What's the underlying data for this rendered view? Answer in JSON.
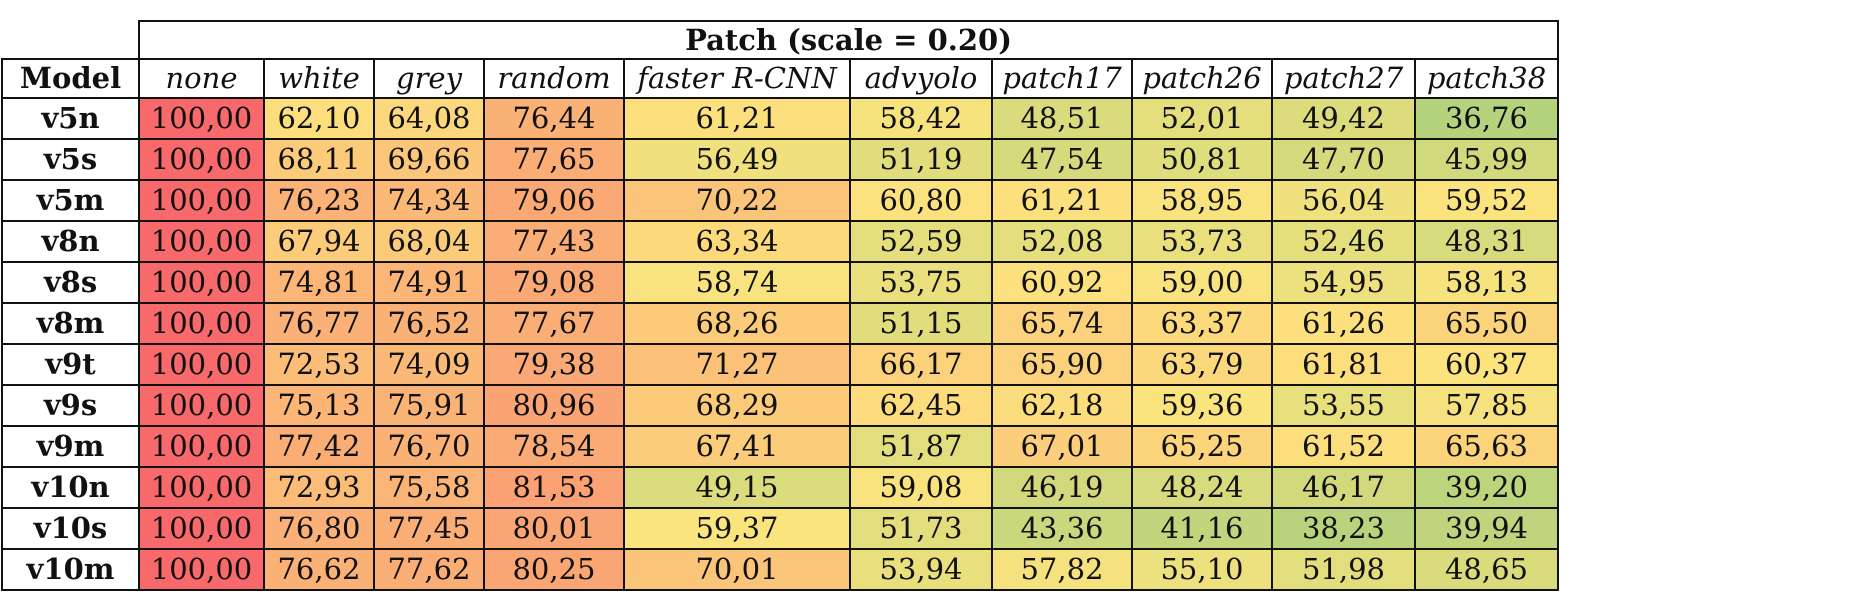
{
  "table": {
    "title": "Patch (scale = 0.20)",
    "model_header": "Model",
    "columns": [
      "none",
      "white",
      "grey",
      "random",
      "faster R-CNN",
      "advyolo",
      "patch17",
      "patch26",
      "patch27",
      "patch38"
    ],
    "rows": [
      {
        "model": "v5n",
        "values": [
          "100,00",
          "62,10",
          "64,08",
          "76,44",
          "61,21",
          "58,42",
          "48,51",
          "52,01",
          "49,42",
          "36,76"
        ]
      },
      {
        "model": "v5s",
        "values": [
          "100,00",
          "68,11",
          "69,66",
          "77,65",
          "56,49",
          "51,19",
          "47,54",
          "50,81",
          "47,70",
          "45,99"
        ]
      },
      {
        "model": "v5m",
        "values": [
          "100,00",
          "76,23",
          "74,34",
          "79,06",
          "70,22",
          "60,80",
          "61,21",
          "58,95",
          "56,04",
          "59,52"
        ]
      },
      {
        "model": "v8n",
        "values": [
          "100,00",
          "67,94",
          "68,04",
          "77,43",
          "63,34",
          "52,59",
          "52,08",
          "53,73",
          "52,46",
          "48,31"
        ]
      },
      {
        "model": "v8s",
        "values": [
          "100,00",
          "74,81",
          "74,91",
          "79,08",
          "58,74",
          "53,75",
          "60,92",
          "59,00",
          "54,95",
          "58,13"
        ]
      },
      {
        "model": "v8m",
        "values": [
          "100,00",
          "76,77",
          "76,52",
          "77,67",
          "68,26",
          "51,15",
          "65,74",
          "63,37",
          "61,26",
          "65,50"
        ]
      },
      {
        "model": "v9t",
        "values": [
          "100,00",
          "72,53",
          "74,09",
          "79,38",
          "71,27",
          "66,17",
          "65,90",
          "63,79",
          "61,81",
          "60,37"
        ]
      },
      {
        "model": "v9s",
        "values": [
          "100,00",
          "75,13",
          "75,91",
          "80,96",
          "68,29",
          "62,45",
          "62,18",
          "59,36",
          "53,55",
          "57,85"
        ]
      },
      {
        "model": "v9m",
        "values": [
          "100,00",
          "77,42",
          "76,70",
          "78,54",
          "67,41",
          "51,87",
          "67,01",
          "65,25",
          "61,52",
          "65,63"
        ]
      },
      {
        "model": "v10n",
        "values": [
          "100,00",
          "72,93",
          "75,58",
          "81,53",
          "49,15",
          "59,08",
          "46,19",
          "48,24",
          "46,17",
          "39,20"
        ]
      },
      {
        "model": "v10s",
        "values": [
          "100,00",
          "76,80",
          "77,45",
          "80,01",
          "59,37",
          "51,73",
          "43,36",
          "41,16",
          "38,23",
          "39,94"
        ]
      },
      {
        "model": "v10m",
        "values": [
          "100,00",
          "76,62",
          "77,62",
          "80,25",
          "70,01",
          "53,94",
          "57,82",
          "55,10",
          "51,98",
          "48,65"
        ]
      }
    ]
  },
  "colors": {
    "scale_low": "#b5d27c",
    "scale_mid": "#fce47e",
    "scale_high": "#f8696b"
  }
}
